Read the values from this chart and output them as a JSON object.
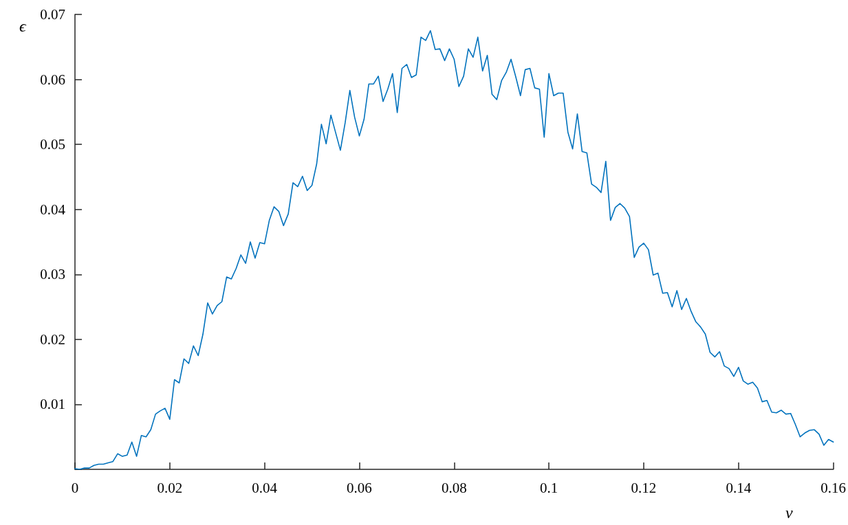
{
  "chart_data": {
    "type": "line",
    "xlabel": "ν",
    "ylabel": "ϵ",
    "xlim": [
      0,
      0.16
    ],
    "ylim": [
      0,
      0.07
    ],
    "xticks": [
      0,
      0.02,
      0.04,
      0.06,
      0.08,
      0.1,
      0.12,
      0.14,
      0.16
    ],
    "yticks": [
      {
        "value": 0,
        "label": null
      },
      0.01,
      0.02,
      0.03,
      0.04,
      0.05,
      0.06,
      0.07
    ],
    "grid": false,
    "marker": "none",
    "line_style": "solid",
    "x": [
      0,
      0.001,
      0.002,
      0.003,
      0.004,
      0.005,
      0.006,
      0.007,
      0.008,
      0.009,
      0.01,
      0.011,
      0.012,
      0.013,
      0.014,
      0.015,
      0.016,
      0.017,
      0.018,
      0.019,
      0.02,
      0.021,
      0.022,
      0.023,
      0.024,
      0.025,
      0.026,
      0.027,
      0.028,
      0.029,
      0.03,
      0.031,
      0.032,
      0.033,
      0.034,
      0.035,
      0.036,
      0.037,
      0.038,
      0.039,
      0.04,
      0.041,
      0.042,
      0.043,
      0.044,
      0.045,
      0.046,
      0.047,
      0.048,
      0.049,
      0.05,
      0.051,
      0.052,
      0.053,
      0.054,
      0.055,
      0.056,
      0.057,
      0.058,
      0.059,
      0.06,
      0.061,
      0.062,
      0.063,
      0.064,
      0.065,
      0.066,
      0.067,
      0.068,
      0.069,
      0.07,
      0.071,
      0.072,
      0.073,
      0.074,
      0.075,
      0.076,
      0.077,
      0.078,
      0.079,
      0.08,
      0.081,
      0.082,
      0.083,
      0.084,
      0.085,
      0.086,
      0.087,
      0.088,
      0.089,
      0.09,
      0.091,
      0.092,
      0.093,
      0.094,
      0.095,
      0.096,
      0.097,
      0.098,
      0.099,
      0.1,
      0.101,
      0.102,
      0.103,
      0.104,
      0.105,
      0.106,
      0.107,
      0.108,
      0.109,
      0.11,
      0.111,
      0.112,
      0.113,
      0.114,
      0.115,
      0.116,
      0.117,
      0.118,
      0.119,
      0.12,
      0.121,
      0.122,
      0.123,
      0.124,
      0.125,
      0.126,
      0.127,
      0.128,
      0.129,
      0.13,
      0.131,
      0.132,
      0.133,
      0.134,
      0.135,
      0.136,
      0.137,
      0.138,
      0.139,
      0.14,
      0.141,
      0.142,
      0.143,
      0.144,
      0.145,
      0.146,
      0.147,
      0.148,
      0.149,
      0.15,
      0.151,
      0.152,
      0.153,
      0.154,
      0.155,
      0.156,
      0.157,
      0.158,
      0.159,
      0.16
    ],
    "series": [
      {
        "color": "#0072bd",
        "values": [
          0.0001,
          0,
          0.0002,
          0.0002,
          0.0006,
          0.0008,
          0.0008,
          0.001,
          0.0012,
          0.0024,
          0.002,
          0.0022,
          0.0042,
          0.002,
          0.0052,
          0.005,
          0.0061,
          0.0085,
          0.009,
          0.0094,
          0.0077,
          0.0138,
          0.0133,
          0.017,
          0.0163,
          0.019,
          0.0175,
          0.0208,
          0.0256,
          0.0239,
          0.0252,
          0.0258,
          0.0296,
          0.0293,
          0.0309,
          0.033,
          0.0317,
          0.035,
          0.0325,
          0.0349,
          0.0347,
          0.0383,
          0.0404,
          0.0397,
          0.0375,
          0.0393,
          0.0441,
          0.0435,
          0.0451,
          0.0429,
          0.0437,
          0.047,
          0.0531,
          0.0501,
          0.0545,
          0.0518,
          0.0491,
          0.0533,
          0.0583,
          0.0542,
          0.0513,
          0.0539,
          0.0593,
          0.0593,
          0.0605,
          0.0566,
          0.0585,
          0.0609,
          0.0549,
          0.0617,
          0.0623,
          0.0603,
          0.0607,
          0.0665,
          0.066,
          0.0675,
          0.0646,
          0.0647,
          0.0629,
          0.0647,
          0.0631,
          0.0589,
          0.0605,
          0.0647,
          0.0634,
          0.0665,
          0.0613,
          0.0637,
          0.0577,
          0.0569,
          0.0598,
          0.0611,
          0.0631,
          0.0604,
          0.0575,
          0.0615,
          0.0617,
          0.0587,
          0.0585,
          0.0511,
          0.0609,
          0.0575,
          0.0579,
          0.0579,
          0.0519,
          0.0493,
          0.0547,
          0.0489,
          0.0487,
          0.0439,
          0.0434,
          0.0426,
          0.0474,
          0.0383,
          0.0403,
          0.0409,
          0.0402,
          0.0389,
          0.0326,
          0.0342,
          0.0348,
          0.0338,
          0.0299,
          0.0302,
          0.0271,
          0.0272,
          0.025,
          0.0275,
          0.0246,
          0.0263,
          0.0243,
          0.0227,
          0.0219,
          0.0208,
          0.018,
          0.0173,
          0.0181,
          0.0159,
          0.0155,
          0.0143,
          0.0157,
          0.0136,
          0.0131,
          0.0134,
          0.0125,
          0.0104,
          0.0106,
          0.0088,
          0.0087,
          0.0091,
          0.0085,
          0.0086,
          0.0069,
          0.005,
          0.0056,
          0.006,
          0.0061,
          0.0054,
          0.0037,
          0.0046,
          0.0042
        ]
      }
    ]
  }
}
